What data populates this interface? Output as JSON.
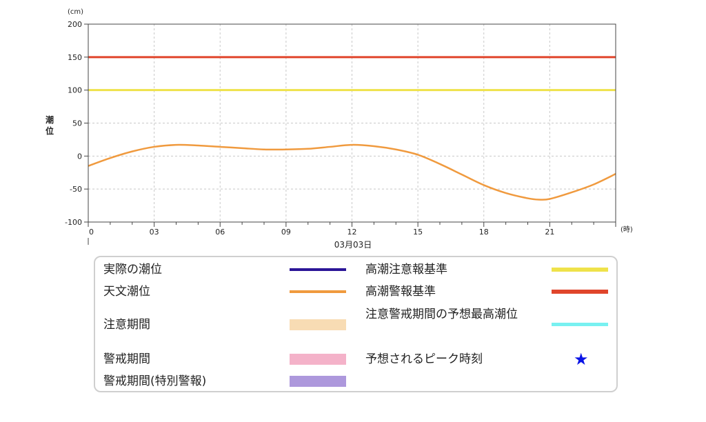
{
  "chart_data": {
    "type": "line",
    "ylabel": "潮位",
    "y_unit": "(cm)",
    "x_unit": "(時)",
    "date_label": "03月03日",
    "ylim": [
      -100,
      200
    ],
    "yticks": [
      200,
      150,
      100,
      50,
      0,
      -50,
      -100
    ],
    "xlim": [
      0,
      24
    ],
    "xticks": [
      0,
      3,
      6,
      9,
      12,
      15,
      18,
      21
    ],
    "xtick_labels": [
      "0",
      "03",
      "06",
      "09",
      "12",
      "15",
      "18",
      "21"
    ],
    "grid": true,
    "reference_lines": [
      {
        "name": "高潮警報基準",
        "value": 150,
        "color": "#e0452b"
      },
      {
        "name": "高潮注意報基準",
        "value": 100,
        "color": "#efe24a"
      }
    ],
    "series": [
      {
        "name": "天文潮位",
        "color": "#f09a3e",
        "x": [
          0,
          1,
          2,
          3,
          4,
          5,
          6,
          7,
          8,
          9,
          10,
          11,
          12,
          13,
          14,
          15,
          16,
          17,
          18,
          19,
          20,
          20.5,
          21,
          22,
          23,
          24
        ],
        "y": [
          -15,
          -3,
          7,
          14,
          17,
          16,
          14,
          12,
          10,
          10,
          11,
          14,
          17,
          15,
          10,
          2,
          -12,
          -28,
          -44,
          -56,
          -64,
          -66,
          -65,
          -55,
          -43,
          -27
        ]
      }
    ]
  },
  "legend": {
    "items": [
      {
        "label": "実際の潮位",
        "color": "#2b1597",
        "kind": "line"
      },
      {
        "label": "天文潮位",
        "color": "#f09a3e",
        "kind": "line"
      },
      {
        "label": "注意期間",
        "color": "#f8dcb4",
        "kind": "band"
      },
      {
        "label": "警戒期間",
        "color": "#f4b2c9",
        "kind": "band"
      },
      {
        "label": "警戒期間(特別警報)",
        "color": "#ad98dc",
        "kind": "band"
      },
      {
        "label": "高潮注意報基準",
        "color": "#efe24a",
        "kind": "line"
      },
      {
        "label": "高潮警報基準",
        "color": "#e0452b",
        "kind": "line"
      },
      {
        "label": "注意警戒期間の予想最高潮位",
        "color": "#78f1f1",
        "kind": "line"
      },
      {
        "label": "予想されるピーク時刻",
        "color": "#0a14e6",
        "kind": "star",
        "icon": "star-icon"
      }
    ]
  }
}
